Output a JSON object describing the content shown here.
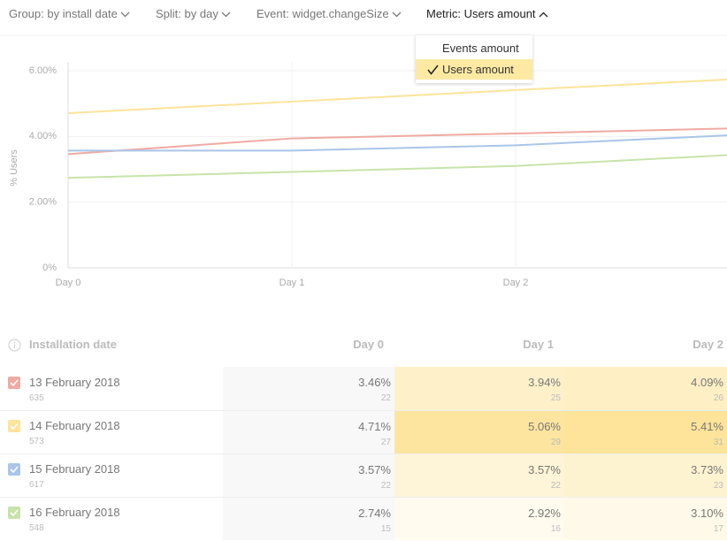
{
  "toolbar": {
    "items": [
      "Group: by install date",
      "Split: by day",
      "Event: widget.changeSize",
      "Metric: Users amount"
    ]
  },
  "dropdown": {
    "options": [
      "Events amount",
      "Users amount"
    ]
  },
  "chart_data": {
    "type": "line",
    "ylabel": "% Users",
    "categories": [
      "Day 0",
      "Day 1",
      "Day 2",
      null
    ],
    "series": [
      {
        "name": "13 February 2018",
        "color": "#f0aaa2",
        "values": [
          3.46,
          3.94,
          4.09,
          4.25
        ]
      },
      {
        "name": "14 February 2018",
        "color": "#fde49a",
        "values": [
          4.71,
          5.06,
          5.41,
          5.75
        ]
      },
      {
        "name": "15 February 2018",
        "color": "#a9c5e8",
        "values": [
          3.57,
          3.57,
          3.73,
          4.05
        ]
      },
      {
        "name": "16 February 2018",
        "color": "#c8e3aa",
        "values": [
          2.74,
          2.92,
          3.1,
          3.45
        ]
      }
    ],
    "ylim": [
      0,
      6
    ],
    "yticks": [
      {
        "value": 0,
        "label": "0%"
      },
      {
        "value": 2,
        "label": "2.00%"
      },
      {
        "value": 4,
        "label": "4.00%"
      },
      {
        "value": 6,
        "label": "6.00%"
      }
    ],
    "grid": true
  },
  "table": {
    "header": [
      "Installation date",
      "Day 0",
      "Day 1",
      "Day 2"
    ],
    "rows": [
      {
        "date": "13 February 2018",
        "count": "635",
        "cells": [
          {
            "value": "3.46%",
            "count": "22"
          },
          {
            "value": "3.94%",
            "count": "25"
          },
          {
            "value": "4.09%",
            "count": "26"
          }
        ]
      },
      {
        "date": "14 February 2018",
        "count": "573",
        "cells": [
          {
            "value": "4.71%",
            "count": "27"
          },
          {
            "value": "5.06%",
            "count": "29"
          },
          {
            "value": "5.41%",
            "count": "31"
          }
        ]
      },
      {
        "date": "15 February 2018",
        "count": "617",
        "cells": [
          {
            "value": "3.57%",
            "count": "22"
          },
          {
            "value": "3.57%",
            "count": "22"
          },
          {
            "value": "3.73%",
            "count": "23"
          }
        ]
      },
      {
        "date": "16 February 2018",
        "count": "548",
        "cells": [
          {
            "value": "2.74%",
            "count": "15"
          },
          {
            "value": "2.92%",
            "count": "16"
          },
          {
            "value": "3.10%",
            "count": "17"
          }
        ]
      }
    ]
  }
}
